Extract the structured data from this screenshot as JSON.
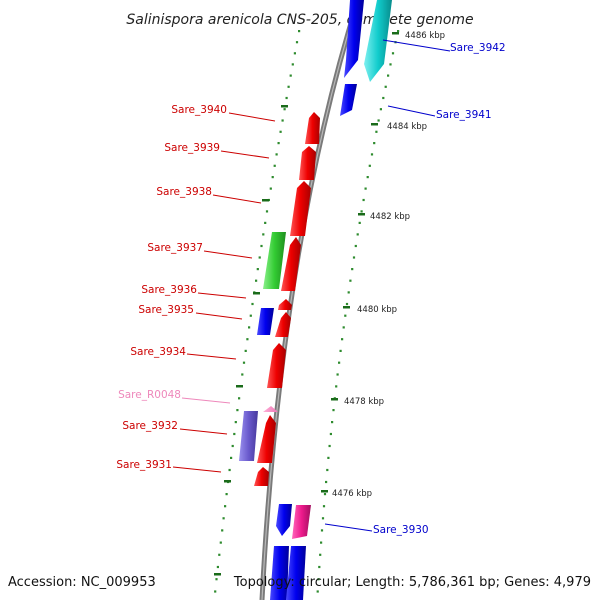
{
  "title": "Salinispora arenicola CNS-205, complete genome",
  "accession": "Accession: NC_009953",
  "summary": "Topology: circular; Length: 5,786,361 bp; Genes: 4,979",
  "colors": {
    "backbone": "#808080",
    "dots": "#2e8b2e",
    "left_label": "#cc0000",
    "right_label": "#0000cc",
    "rna_label": "#ee88bb",
    "ticks": "#1a6b1a"
  },
  "ticks": [
    {
      "label": "4486 kbp"
    },
    {
      "label": "4484 kbp"
    },
    {
      "label": "4482 kbp"
    },
    {
      "label": "4480 kbp"
    },
    {
      "label": "4478 kbp"
    },
    {
      "label": "4476 kbp"
    }
  ],
  "labels": [
    {
      "text": "Sare_3942",
      "side": "right",
      "kind": "gene"
    },
    {
      "text": "Sare_3941",
      "side": "right",
      "kind": "gene"
    },
    {
      "text": "Sare_3940",
      "side": "left",
      "kind": "gene"
    },
    {
      "text": "Sare_3939",
      "side": "left",
      "kind": "gene"
    },
    {
      "text": "Sare_3938",
      "side": "left",
      "kind": "gene"
    },
    {
      "text": "Sare_3937",
      "side": "left",
      "kind": "gene"
    },
    {
      "text": "Sare_3936",
      "side": "left",
      "kind": "gene"
    },
    {
      "text": "Sare_3935",
      "side": "left",
      "kind": "gene"
    },
    {
      "text": "Sare_3934",
      "side": "left",
      "kind": "gene"
    },
    {
      "text": "Sare_R0048",
      "side": "left",
      "kind": "rna"
    },
    {
      "text": "Sare_3932",
      "side": "left",
      "kind": "gene"
    },
    {
      "text": "Sare_3931",
      "side": "left",
      "kind": "gene"
    },
    {
      "text": "Sare_3930",
      "side": "right",
      "kind": "gene"
    }
  ]
}
